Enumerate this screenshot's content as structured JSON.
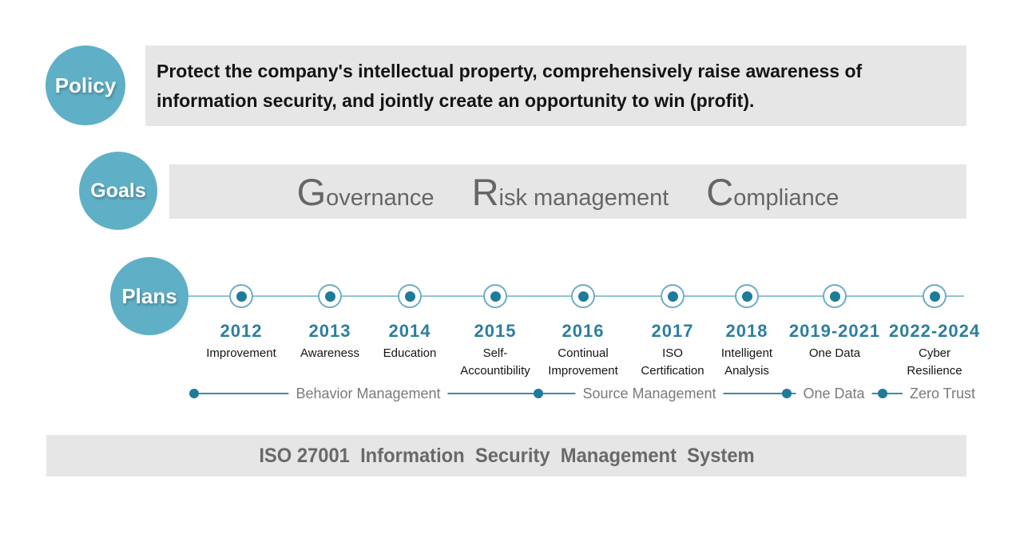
{
  "policy": {
    "badge": "Policy",
    "lines": [
      "Protect the company's intellectual property, comprehensively raise awareness of",
      "information security, and jointly create an opportunity to win (profit)."
    ]
  },
  "goals": {
    "badge": "Goals",
    "items": [
      {
        "initial": "G",
        "rest": "overnance"
      },
      {
        "initial": "R",
        "rest": "isk management"
      },
      {
        "initial": "C",
        "rest": "ompliance"
      }
    ]
  },
  "plans": {
    "badge": "Plans",
    "milestones": [
      {
        "year": "2012",
        "label_lines": [
          "Improvement"
        ]
      },
      {
        "year": "2013",
        "label_lines": [
          "Awareness"
        ]
      },
      {
        "year": "2014",
        "label_lines": [
          "Education"
        ]
      },
      {
        "year": "2015",
        "label_lines": [
          "Self-",
          "Accountibility"
        ]
      },
      {
        "year": "2016",
        "label_lines": [
          "Continual",
          "Improvement"
        ]
      },
      {
        "year": "2017",
        "label_lines": [
          "ISO",
          "Certification"
        ]
      },
      {
        "year": "2018",
        "label_lines": [
          "Intelligent",
          "Analysis"
        ]
      },
      {
        "year": "2019-2021",
        "label_lines": [
          "One Data"
        ]
      },
      {
        "year": "2022-2024",
        "label_lines": [
          "Cyber",
          "Resilience"
        ]
      }
    ],
    "phases": [
      {
        "label": "Behavior Management"
      },
      {
        "label": "Source Management"
      },
      {
        "label": "One Data"
      },
      {
        "label": "Zero Trust"
      }
    ]
  },
  "footer": {
    "text": "ISO 27001  Information  Security  Management  System"
  },
  "colors": {
    "badge_teal": "#5fb0c7",
    "panel_gray": "#e6e6e6",
    "year_teal": "#2b7f9e",
    "marker_dot": "#1e7b9a",
    "timeline_line": "#90c2d2",
    "phase_line": "#3f8ba4",
    "goals_text": "#666666",
    "footer_text": "#696969"
  }
}
